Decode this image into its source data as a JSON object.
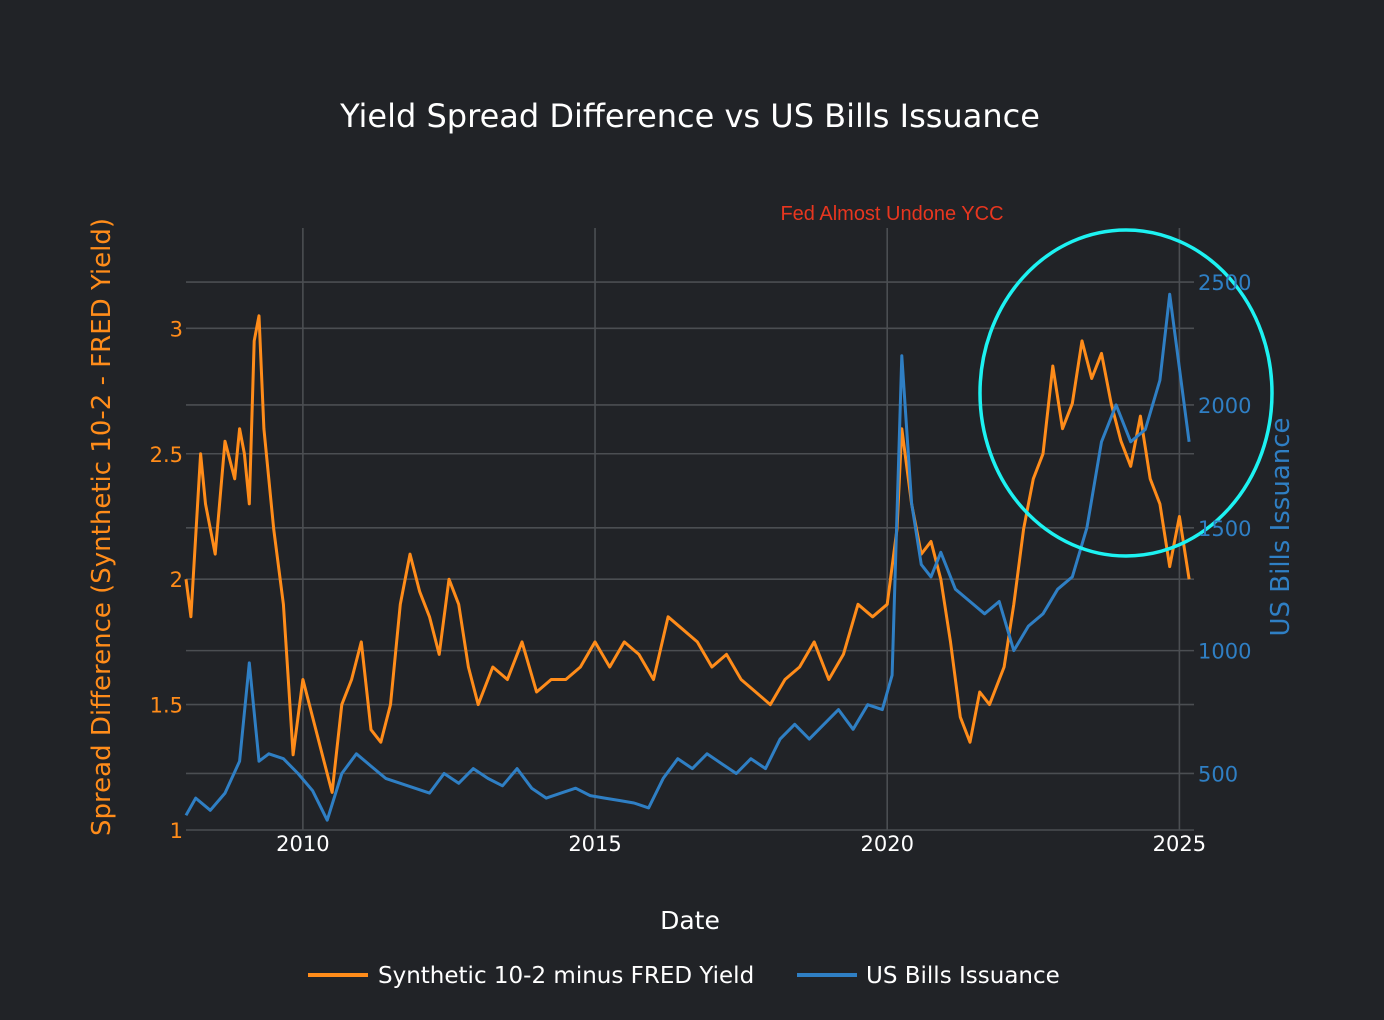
{
  "chart_data": {
    "type": "line",
    "title": "Yield Spread Difference vs US Bills Issuance",
    "xlabel": "Date",
    "ylabel_left": "Spread Difference (Synthetic 10-2 - FRED Yield)",
    "ylabel_right": "US Bills Issuance",
    "x_ticks": [
      "2010",
      "2015",
      "2020",
      "2025"
    ],
    "y_left_ticks": [
      "1",
      "1.5",
      "2",
      "2.5",
      "3"
    ],
    "y_right_ticks": [
      "500",
      "1000",
      "1500",
      "2000",
      "2500"
    ],
    "xlim": [
      "2008-01-01",
      "2025-04-01"
    ],
    "ylim_left": [
      1.0,
      3.4
    ],
    "ylim_right": [
      270,
      2720
    ],
    "grid": true,
    "legend_position": "bottom",
    "annotation": {
      "text": "Fed Almost Undone YCC",
      "highlight": "circle",
      "highlight_color": "#1df2f2"
    },
    "series": [
      {
        "name": "Synthetic 10-2 minus FRED Yield",
        "axis": "left",
        "color": "#ff8c1a",
        "points": [
          [
            "2008-01",
            2.0
          ],
          [
            "2008-02",
            1.85
          ],
          [
            "2008-04",
            2.5
          ],
          [
            "2008-05",
            2.3
          ],
          [
            "2008-07",
            2.1
          ],
          [
            "2008-09",
            2.55
          ],
          [
            "2008-11",
            2.4
          ],
          [
            "2008-12",
            2.6
          ],
          [
            "2009-01",
            2.5
          ],
          [
            "2009-02",
            2.3
          ],
          [
            "2009-03",
            2.95
          ],
          [
            "2009-04",
            3.05
          ],
          [
            "2009-05",
            2.6
          ],
          [
            "2009-07",
            2.2
          ],
          [
            "2009-09",
            1.9
          ],
          [
            "2009-10",
            1.6
          ],
          [
            "2009-11",
            1.3
          ],
          [
            "2010-01",
            1.6
          ],
          [
            "2010-03",
            1.45
          ],
          [
            "2010-05",
            1.3
          ],
          [
            "2010-07",
            1.15
          ],
          [
            "2010-09",
            1.5
          ],
          [
            "2010-11",
            1.6
          ],
          [
            "2011-01",
            1.75
          ],
          [
            "2011-03",
            1.4
          ],
          [
            "2011-05",
            1.35
          ],
          [
            "2011-07",
            1.5
          ],
          [
            "2011-09",
            1.9
          ],
          [
            "2011-11",
            2.1
          ],
          [
            "2012-01",
            1.95
          ],
          [
            "2012-03",
            1.85
          ],
          [
            "2012-05",
            1.7
          ],
          [
            "2012-07",
            2.0
          ],
          [
            "2012-09",
            1.9
          ],
          [
            "2012-11",
            1.65
          ],
          [
            "2013-01",
            1.5
          ],
          [
            "2013-04",
            1.65
          ],
          [
            "2013-07",
            1.6
          ],
          [
            "2013-10",
            1.75
          ],
          [
            "2014-01",
            1.55
          ],
          [
            "2014-04",
            1.6
          ],
          [
            "2014-07",
            1.6
          ],
          [
            "2014-10",
            1.65
          ],
          [
            "2015-01",
            1.75
          ],
          [
            "2015-04",
            1.65
          ],
          [
            "2015-07",
            1.75
          ],
          [
            "2015-10",
            1.7
          ],
          [
            "2016-01",
            1.6
          ],
          [
            "2016-04",
            1.85
          ],
          [
            "2016-07",
            1.8
          ],
          [
            "2016-10",
            1.75
          ],
          [
            "2017-01",
            1.65
          ],
          [
            "2017-04",
            1.7
          ],
          [
            "2017-07",
            1.6
          ],
          [
            "2017-10",
            1.55
          ],
          [
            "2018-01",
            1.5
          ],
          [
            "2018-04",
            1.6
          ],
          [
            "2018-07",
            1.65
          ],
          [
            "2018-10",
            1.75
          ],
          [
            "2019-01",
            1.6
          ],
          [
            "2019-04",
            1.7
          ],
          [
            "2019-07",
            1.9
          ],
          [
            "2019-10",
            1.85
          ],
          [
            "2020-01",
            1.9
          ],
          [
            "2020-03",
            2.2
          ],
          [
            "2020-04",
            2.6
          ],
          [
            "2020-06",
            2.3
          ],
          [
            "2020-08",
            2.1
          ],
          [
            "2020-10",
            2.15
          ],
          [
            "2020-12",
            2.0
          ],
          [
            "2021-02",
            1.75
          ],
          [
            "2021-04",
            1.45
          ],
          [
            "2021-06",
            1.35
          ],
          [
            "2021-08",
            1.55
          ],
          [
            "2021-10",
            1.5
          ],
          [
            "2022-01",
            1.65
          ],
          [
            "2022-03",
            1.9
          ],
          [
            "2022-05",
            2.2
          ],
          [
            "2022-07",
            2.4
          ],
          [
            "2022-09",
            2.5
          ],
          [
            "2022-11",
            2.85
          ],
          [
            "2023-01",
            2.6
          ],
          [
            "2023-03",
            2.7
          ],
          [
            "2023-05",
            2.95
          ],
          [
            "2023-07",
            2.8
          ],
          [
            "2023-09",
            2.9
          ],
          [
            "2023-11",
            2.7
          ],
          [
            "2024-01",
            2.55
          ],
          [
            "2024-03",
            2.45
          ],
          [
            "2024-05",
            2.65
          ],
          [
            "2024-07",
            2.4
          ],
          [
            "2024-09",
            2.3
          ],
          [
            "2024-11",
            2.05
          ],
          [
            "2025-01",
            2.25
          ],
          [
            "2025-03",
            2.0
          ]
        ]
      },
      {
        "name": "US Bills Issuance",
        "axis": "right",
        "color": "#2f7fc4",
        "points": [
          [
            "2008-01",
            330
          ],
          [
            "2008-03",
            400
          ],
          [
            "2008-06",
            350
          ],
          [
            "2008-09",
            420
          ],
          [
            "2008-12",
            550
          ],
          [
            "2009-02",
            950
          ],
          [
            "2009-04",
            550
          ],
          [
            "2009-06",
            580
          ],
          [
            "2009-09",
            560
          ],
          [
            "2009-12",
            500
          ],
          [
            "2010-03",
            430
          ],
          [
            "2010-06",
            310
          ],
          [
            "2010-09",
            500
          ],
          [
            "2010-12",
            580
          ],
          [
            "2011-03",
            530
          ],
          [
            "2011-06",
            480
          ],
          [
            "2011-09",
            460
          ],
          [
            "2011-12",
            440
          ],
          [
            "2012-03",
            420
          ],
          [
            "2012-06",
            500
          ],
          [
            "2012-09",
            460
          ],
          [
            "2012-12",
            520
          ],
          [
            "2013-03",
            480
          ],
          [
            "2013-06",
            450
          ],
          [
            "2013-09",
            520
          ],
          [
            "2013-12",
            440
          ],
          [
            "2014-03",
            400
          ],
          [
            "2014-06",
            420
          ],
          [
            "2014-09",
            440
          ],
          [
            "2014-12",
            410
          ],
          [
            "2015-03",
            400
          ],
          [
            "2015-06",
            390
          ],
          [
            "2015-09",
            380
          ],
          [
            "2015-12",
            360
          ],
          [
            "2016-03",
            480
          ],
          [
            "2016-06",
            560
          ],
          [
            "2016-09",
            520
          ],
          [
            "2016-12",
            580
          ],
          [
            "2017-03",
            540
          ],
          [
            "2017-06",
            500
          ],
          [
            "2017-09",
            560
          ],
          [
            "2017-12",
            520
          ],
          [
            "2018-03",
            640
          ],
          [
            "2018-06",
            700
          ],
          [
            "2018-09",
            640
          ],
          [
            "2018-12",
            700
          ],
          [
            "2019-03",
            760
          ],
          [
            "2019-06",
            680
          ],
          [
            "2019-09",
            780
          ],
          [
            "2019-12",
            760
          ],
          [
            "2020-02",
            900
          ],
          [
            "2020-04",
            2200
          ],
          [
            "2020-06",
            1600
          ],
          [
            "2020-08",
            1350
          ],
          [
            "2020-10",
            1300
          ],
          [
            "2020-12",
            1400
          ],
          [
            "2021-03",
            1250
          ],
          [
            "2021-06",
            1200
          ],
          [
            "2021-09",
            1150
          ],
          [
            "2021-12",
            1200
          ],
          [
            "2022-03",
            1000
          ],
          [
            "2022-06",
            1100
          ],
          [
            "2022-09",
            1150
          ],
          [
            "2022-12",
            1250
          ],
          [
            "2023-03",
            1300
          ],
          [
            "2023-06",
            1500
          ],
          [
            "2023-09",
            1850
          ],
          [
            "2023-12",
            2000
          ],
          [
            "2024-03",
            1850
          ],
          [
            "2024-06",
            1900
          ],
          [
            "2024-09",
            2100
          ],
          [
            "2024-11",
            2450
          ],
          [
            "2025-01",
            2150
          ],
          [
            "2025-03",
            1850
          ]
        ]
      }
    ]
  }
}
